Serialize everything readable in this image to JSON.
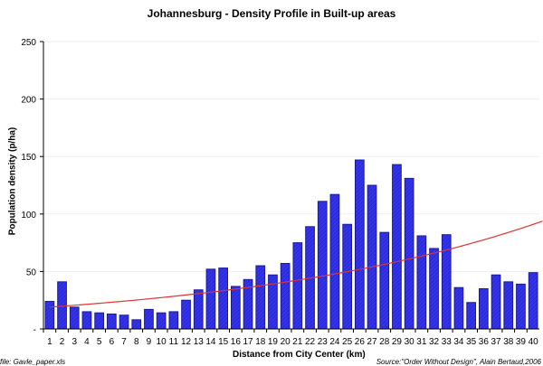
{
  "chart_data": {
    "type": "bar",
    "title": "Johannesburg - Density Profile in Built-up areas",
    "xlabel": "Distance from City Center (km)",
    "ylabel": "Population density (p/ha)",
    "ylim": [
      0,
      250
    ],
    "yticks": [
      "-",
      "50",
      "100",
      "150",
      "200",
      "250"
    ],
    "categories": [
      "1",
      "2",
      "3",
      "4",
      "5",
      "6",
      "7",
      "8",
      "9",
      "10",
      "11",
      "12",
      "13",
      "14",
      "15",
      "16",
      "17",
      "18",
      "19",
      "20",
      "21",
      "22",
      "23",
      "24",
      "25",
      "26",
      "27",
      "28",
      "29",
      "30",
      "31",
      "32",
      "33",
      "34",
      "35",
      "36",
      "37",
      "38",
      "39",
      "40"
    ],
    "values": [
      24,
      41,
      19,
      15,
      14,
      13,
      12,
      8,
      17,
      14,
      15,
      25,
      34,
      52,
      53,
      37,
      43,
      55,
      47,
      57,
      75,
      89,
      111,
      117,
      91,
      147,
      125,
      84,
      143,
      131,
      81,
      70,
      82,
      36,
      23,
      35,
      47,
      41,
      39,
      49
    ],
    "trendline": {
      "type": "exponential",
      "start": 19,
      "end": 91
    },
    "bar_color": "#3333ee",
    "trend_color": "#dd3333",
    "grid": true
  },
  "footer": {
    "file": "file: Gavle_paper.xls",
    "source": "Source:\"Order Without Design\", Alain Bertaud,2006"
  }
}
